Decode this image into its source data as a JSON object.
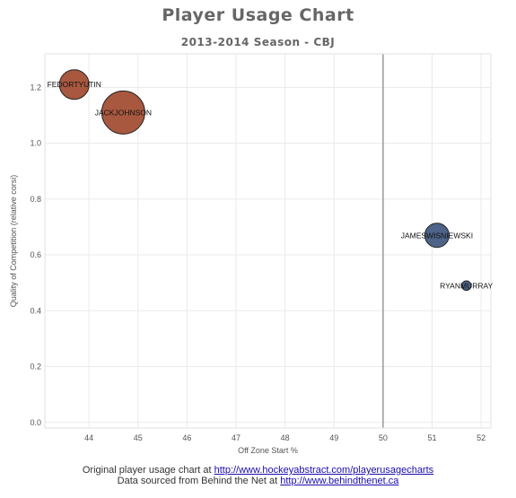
{
  "title": "Player Usage Chart",
  "subtitle": "2013-2014 Season - CBJ",
  "footer": {
    "line1_text": "Original player usage chart at ",
    "line1_link": "http://www.hockeyabstract.com/playerusagecharts",
    "line2_text": "Data sourced from Behind the Net at ",
    "line2_link": "http://www.behindthenet.ca"
  },
  "colors": {
    "negative": "#a8583f",
    "positive": "#4d6388",
    "grid": "#eaeaea",
    "divider": "#999999"
  },
  "chart_data": {
    "type": "scatter",
    "xlabel": "Off Zone Start %",
    "ylabel": "Quality of Competition (relative corsi)",
    "xlim": [
      43.1,
      52.2
    ],
    "ylim": [
      -0.02,
      1.32
    ],
    "xticks": [
      44,
      45,
      46,
      47,
      48,
      49,
      50,
      51,
      52
    ],
    "yticks": [
      0.0,
      0.2,
      0.4,
      0.6,
      0.8,
      1.0,
      1.2
    ],
    "ytick_labels": [
      "0.0",
      "0.2",
      "0.4",
      "0.6",
      "0.8",
      "1.0",
      "1.2"
    ],
    "vertical_line_x": 50,
    "grid": true,
    "points": [
      {
        "name": "FEDORTYUTIN",
        "x": 43.7,
        "y": 1.21,
        "size": 11,
        "color": "negative"
      },
      {
        "name": "JACKJOHNSON",
        "x": 44.7,
        "y": 1.11,
        "size": 16,
        "color": "negative"
      },
      {
        "name": "JAMESWISNIEWSKI",
        "x": 51.1,
        "y": 0.67,
        "size": 9,
        "color": "positive"
      },
      {
        "name": "RYANMURRAY",
        "x": 51.7,
        "y": 0.49,
        "size": 3.5,
        "color": "positive"
      }
    ]
  }
}
